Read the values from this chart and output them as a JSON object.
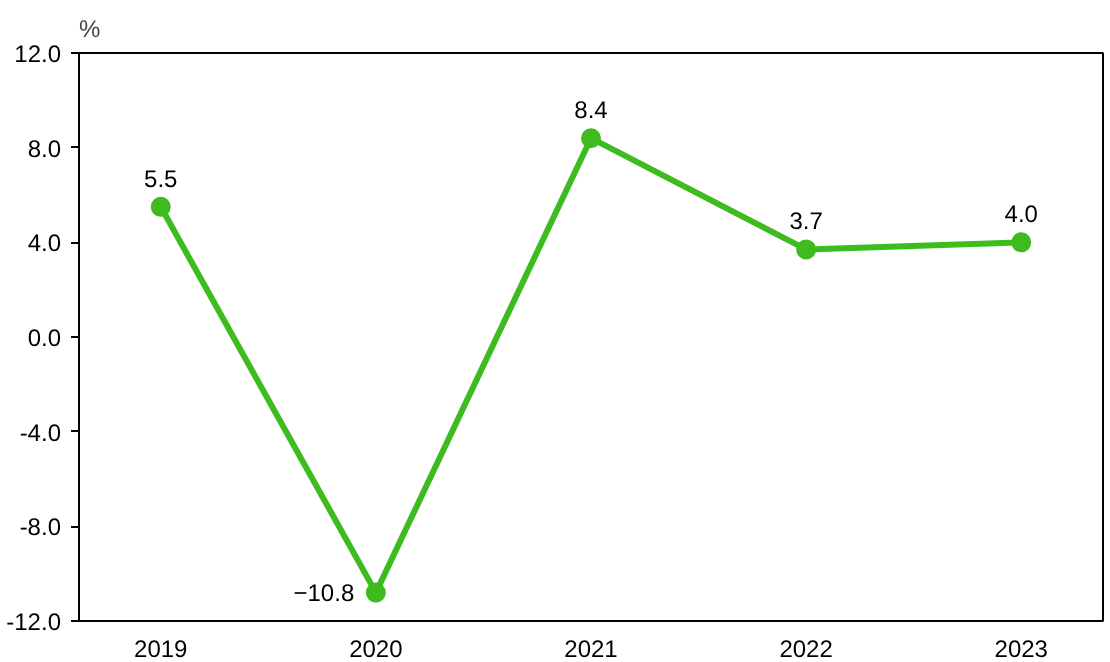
{
  "chart_data": {
    "type": "line",
    "ylabel": "%",
    "categories": [
      "2019",
      "2020",
      "2021",
      "2022",
      "2023"
    ],
    "series": [
      {
        "color": "#3dbb1f",
        "values": [
          5.5,
          -10.8,
          8.4,
          3.7,
          4.0
        ],
        "value_labels": [
          "5.5",
          "−10.8",
          "8.4",
          "3.7",
          "4.0"
        ]
      }
    ],
    "ylim": [
      -12,
      12
    ],
    "yticks": [
      {
        "value": -12,
        "label": "-12.0"
      },
      {
        "value": -8,
        "label": "-8.0"
      },
      {
        "value": -4,
        "label": "-4.0"
      },
      {
        "value": 0,
        "label": "0.0"
      },
      {
        "value": 4,
        "label": "4.0"
      },
      {
        "value": 8,
        "label": "8.0"
      },
      {
        "value": 12,
        "label": "12.0"
      }
    ],
    "grid": false,
    "marker": "circle",
    "line_style": "solid"
  }
}
